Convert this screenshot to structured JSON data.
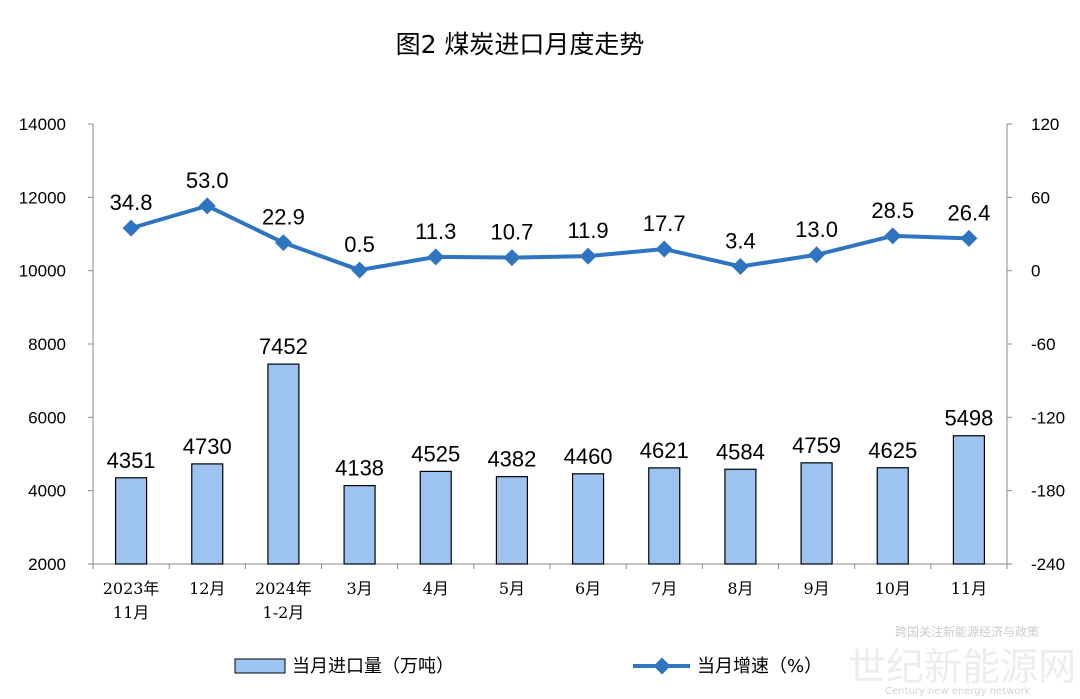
{
  "chart_data": {
    "type": "bar+line",
    "title": "图2  煤炭进口月度走势",
    "categories": [
      [
        "2023年",
        "11月"
      ],
      [
        "12月"
      ],
      [
        "2024年",
        "1-2月"
      ],
      [
        "3月"
      ],
      [
        "4月"
      ],
      [
        "5月"
      ],
      [
        "6月"
      ],
      [
        "7月"
      ],
      [
        "8月"
      ],
      [
        "9月"
      ],
      [
        "10月"
      ],
      [
        "11月"
      ]
    ],
    "series": [
      {
        "name": "当月进口量（万吨）",
        "type": "bar",
        "axis": "left",
        "color": "#9DC3F0",
        "values": [
          4351,
          4730,
          7452,
          4138,
          4525,
          4382,
          4460,
          4621,
          4584,
          4759,
          4625,
          5498
        ]
      },
      {
        "name": "当月增速（%）",
        "type": "line",
        "axis": "right",
        "color": "#2E74C0",
        "values": [
          34.8,
          53.0,
          22.9,
          0.5,
          11.3,
          10.7,
          11.9,
          17.7,
          3.4,
          13.0,
          28.5,
          26.4
        ]
      }
    ],
    "left_axis": {
      "ylim": [
        2000,
        14000
      ],
      "ticks": [
        2000,
        4000,
        6000,
        8000,
        10000,
        12000,
        14000
      ]
    },
    "right_axis": {
      "ylim": [
        -240,
        120
      ],
      "ticks": [
        -240,
        -180,
        -120,
        -60,
        0,
        60,
        120
      ]
    },
    "bar_labels": [
      "4351",
      "4730",
      "7452",
      "4138",
      "4525",
      "4382",
      "4460",
      "4621",
      "4584",
      "4759",
      "4625",
      "5498"
    ],
    "line_labels": [
      "34.8",
      "53.0",
      "22.9",
      "0.5",
      "11.3",
      "10.7",
      "11.9",
      "17.7",
      "3.4",
      "13.0",
      "28.5",
      "26.4"
    ],
    "legend": {
      "placement": "bottom",
      "items": [
        "当月进口量（万吨）",
        "当月增速（%）"
      ]
    },
    "grid": false
  },
  "watermark": {
    "main": "世纪新能源网",
    "sub": "Century new energy network",
    "top": "跨国关注新能源经济与政策"
  }
}
